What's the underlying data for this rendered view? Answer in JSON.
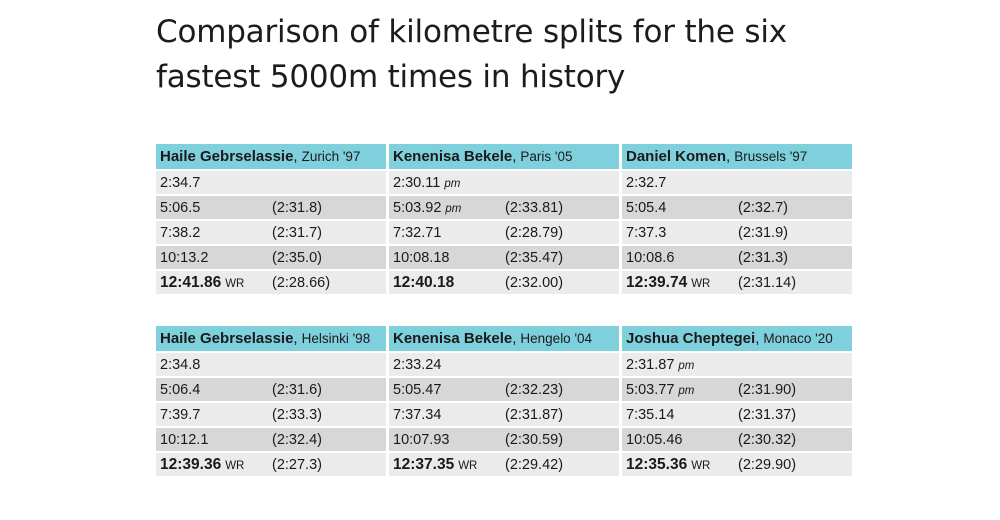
{
  "title": "Comparison of kilometre splits for the six fastest 5000m times in history",
  "groups": [
    {
      "columns": [
        {
          "athlete": "Haile Gebrselassie",
          "race": "Zurich '97",
          "rows": [
            {
              "time": "2:34.7",
              "mark": "",
              "split": ""
            },
            {
              "time": "5:06.5",
              "mark": "",
              "split": "(2:31.8)"
            },
            {
              "time": "7:38.2",
              "mark": "",
              "split": "(2:31.7)"
            },
            {
              "time": "10:13.2",
              "mark": "",
              "split": "(2:35.0)"
            },
            {
              "time": "12:41.86",
              "mark": "WR",
              "split": "(2:28.66)"
            }
          ]
        },
        {
          "athlete": "Kenenisa Bekele",
          "race": "Paris '05",
          "rows": [
            {
              "time": "2:30.11",
              "mark": "pm",
              "split": ""
            },
            {
              "time": "5:03.92",
              "mark": "pm",
              "split": "(2:33.81)"
            },
            {
              "time": "7:32.71",
              "mark": "",
              "split": "(2:28.79)"
            },
            {
              "time": "10:08.18",
              "mark": "",
              "split": "(2:35.47)"
            },
            {
              "time": "12:40.18",
              "mark": "",
              "split": "(2:32.00)"
            }
          ]
        },
        {
          "athlete": "Daniel Komen",
          "race": "Brussels '97",
          "rows": [
            {
              "time": "2:32.7",
              "mark": "",
              "split": ""
            },
            {
              "time": "5:05.4",
              "mark": "",
              "split": "(2:32.7)"
            },
            {
              "time": "7:37.3",
              "mark": "",
              "split": "(2:31.9)"
            },
            {
              "time": "10:08.6",
              "mark": "",
              "split": "(2:31.3)"
            },
            {
              "time": "12:39.74",
              "mark": "WR",
              "split": "(2:31.14)"
            }
          ]
        }
      ]
    },
    {
      "columns": [
        {
          "athlete": "Haile Gebrselassie",
          "race": "Helsinki '98",
          "rows": [
            {
              "time": "2:34.8",
              "mark": "",
              "split": ""
            },
            {
              "time": "5:06.4",
              "mark": "",
              "split": "(2:31.6)"
            },
            {
              "time": "7:39.7",
              "mark": "",
              "split": "(2:33.3)"
            },
            {
              "time": "10:12.1",
              "mark": "",
              "split": "(2:32.4)"
            },
            {
              "time": "12:39.36",
              "mark": "WR",
              "split": "(2:27.3)"
            }
          ]
        },
        {
          "athlete": "Kenenisa Bekele",
          "race": "Hengelo '04",
          "rows": [
            {
              "time": "2:33.24",
              "mark": "",
              "split": ""
            },
            {
              "time": "5:05.47",
              "mark": "",
              "split": "(2:32.23)"
            },
            {
              "time": "7:37.34",
              "mark": "",
              "split": "(2:31.87)"
            },
            {
              "time": "10:07.93",
              "mark": "",
              "split": "(2:30.59)"
            },
            {
              "time": "12:37.35",
              "mark": "WR",
              "split": "(2:29.42)"
            }
          ]
        },
        {
          "athlete": "Joshua Cheptegei",
          "race": "Monaco '20",
          "rows": [
            {
              "time": "2:31.87",
              "mark": "pm",
              "split": ""
            },
            {
              "time": "5:03.77",
              "mark": "pm",
              "split": "(2:31.90)"
            },
            {
              "time": "7:35.14",
              "mark": "",
              "split": "(2:31.37)"
            },
            {
              "time": "10:05.46",
              "mark": "",
              "split": "(2:30.32)"
            },
            {
              "time": "12:35.36",
              "mark": "WR",
              "split": "(2:29.90)"
            }
          ]
        }
      ]
    }
  ]
}
